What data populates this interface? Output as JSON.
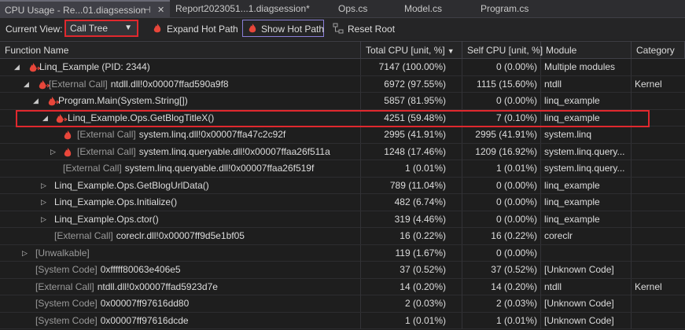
{
  "tabs": [
    "CPU Usage - Re...01.diagsession",
    "Report2023051...1.diagsession*",
    "Ops.cs",
    "Model.cs",
    "Program.cs"
  ],
  "toolbar": {
    "current_view_label": "Current View:",
    "current_view": "Call Tree",
    "expand_hot_path": "Expand Hot Path",
    "show_hot_path": "Show Hot Path",
    "reset_root": "Reset Root"
  },
  "table": {
    "columns": [
      "Function Name",
      "Total CPU [unit, %]",
      "Self CPU [unit, %]",
      "Module",
      "Category"
    ],
    "rows": [
      {
        "name": "Linq_Example (PID: 2344)",
        "total": "7147 (100.00%)",
        "self": "0 (0.00%)",
        "module": "Multiple modules"
      },
      {
        "prefix": "[External Call]",
        "name": "ntdll.dll!0x00007ffad590a9f8",
        "total": "6972 (97.55%)",
        "self": "1115 (15.60%)",
        "module": "ntdll",
        "category": "Kernel"
      },
      {
        "name": "Program.Main(System.String[])",
        "total": "5857 (81.95%)",
        "self": "0 (0.00%)",
        "module": "linq_example"
      },
      {
        "name": "Linq_Example.Ops.GetBlogTitleX()",
        "total": "4251 (59.48%)",
        "self": "7 (0.10%)",
        "module": "linq_example"
      },
      {
        "prefix": "[External Call]",
        "name": "system.linq.dll!0x00007ffa47c2c92f",
        "total": "2995 (41.91%)",
        "self": "2995 (41.91%)",
        "module": "system.linq"
      },
      {
        "prefix": "[External Call]",
        "name": "system.linq.queryable.dll!0x00007ffaa26f511a",
        "total": "1248 (17.46%)",
        "self": "1209 (16.92%)",
        "module": "system.linq.query..."
      },
      {
        "prefix": "[External Call]",
        "name": "system.linq.queryable.dll!0x00007ffaa26f519f",
        "total": "1 (0.01%)",
        "self": "1 (0.01%)",
        "module": "system.linq.query..."
      },
      {
        "name": "Linq_Example.Ops.GetBlogUrlData()",
        "total": "789 (11.04%)",
        "self": "0 (0.00%)",
        "module": "linq_example"
      },
      {
        "name": "Linq_Example.Ops.Initialize()",
        "total": "482 (6.74%)",
        "self": "0 (0.00%)",
        "module": "linq_example"
      },
      {
        "name": "Linq_Example.Ops.ctor()",
        "total": "319 (4.46%)",
        "self": "0 (0.00%)",
        "module": "linq_example"
      },
      {
        "prefix": "[External Call]",
        "name": "coreclr.dll!0x00007ff9d5e1bf05",
        "total": "16 (0.22%)",
        "self": "16 (0.22%)",
        "module": "coreclr"
      },
      {
        "prefix": "[Unwalkable]",
        "total": "119 (1.67%)",
        "self": "0 (0.00%)"
      },
      {
        "prefix": "[System Code]",
        "name": "0xfffff80063e406e5",
        "total": "37 (0.52%)",
        "self": "37 (0.52%)",
        "module": "[Unknown Code]"
      },
      {
        "prefix": "[External Call]",
        "name": "ntdll.dll!0x00007ffad5923d7e",
        "total": "14 (0.20%)",
        "self": "14 (0.20%)",
        "module": "ntdll",
        "category": "Kernel"
      },
      {
        "prefix": "[System Code]",
        "name": "0x00007ff97616dd80",
        "total": "2 (0.03%)",
        "self": "2 (0.03%)",
        "module": "[Unknown Code]"
      },
      {
        "prefix": "[System Code]",
        "name": "0x00007ff97616dcde",
        "total": "1 (0.01%)",
        "self": "1 (0.01%)",
        "module": "[Unknown Code]"
      }
    ]
  }
}
